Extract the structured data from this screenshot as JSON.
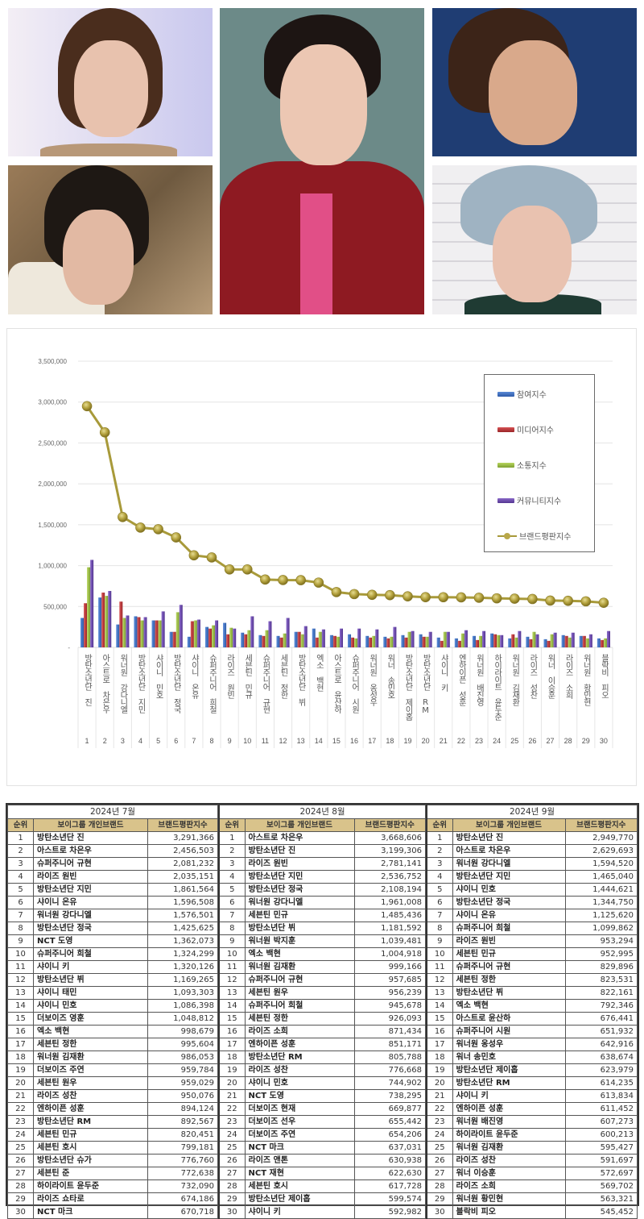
{
  "photos": [
    {
      "id": "photo-top-left",
      "description": "portrait photo"
    },
    {
      "id": "photo-bottom-left",
      "description": "portrait photo"
    },
    {
      "id": "photo-center",
      "description": "portrait photo"
    },
    {
      "id": "photo-top-right",
      "description": "portrait photo"
    },
    {
      "id": "photo-bottom-right",
      "description": "portrait photo"
    }
  ],
  "legend": {
    "items": [
      {
        "label": "참여지수",
        "color": "#3a6fc4"
      },
      {
        "label": "미디어지수",
        "color": "#c0393b"
      },
      {
        "label": "소통지수",
        "color": "#93b846"
      },
      {
        "label": "커뮤니티지수",
        "color": "#6a47a8"
      },
      {
        "label": "브랜드평판지수",
        "color": "#b5a540"
      }
    ]
  },
  "chart_data": {
    "type": "bar",
    "title": "",
    "xlabel": "",
    "ylabel": "",
    "ylim": [
      0,
      3500000
    ],
    "yticks": [
      "-",
      "500,000",
      "1,000,000",
      "1,500,000",
      "2,000,000",
      "2,500,000",
      "3,000,000",
      "3,500,000"
    ],
    "grid": true,
    "legend_position": "upper right",
    "categories": [
      "방탄소년단 진",
      "아스트로 차은우",
      "워너원 강다니엘",
      "방탄소년단 지민",
      "샤이니 민호",
      "방탄소년단 정국",
      "샤이니 온유",
      "슈퍼주니어 희철",
      "라이즈 원빈",
      "세븐틴 민규",
      "슈퍼주니어 규현",
      "세븐틴 정한",
      "방탄소년단 뷔",
      "엑소 백현",
      "아스트로 윤산하",
      "슈퍼주니어 시원",
      "워너원 옹성우",
      "워너 송민호",
      "방탄소년단 제이홉",
      "방탄소년단 RM",
      "샤이니 키",
      "엔하이픈 성훈",
      "워너원 배진영",
      "하이라이트 윤두준",
      "워너원 김재환",
      "라이즈 성찬",
      "워너 이승훈",
      "라이즈 소희",
      "워너원 황민현",
      "블락비 피오"
    ],
    "x_numbers": [
      "1",
      "2",
      "3",
      "4",
      "5",
      "6",
      "7",
      "8",
      "9",
      "10",
      "11",
      "12",
      "13",
      "14",
      "15",
      "16",
      "17",
      "18",
      "19",
      "20",
      "21",
      "22",
      "23",
      "24",
      "25",
      "26",
      "27",
      "28",
      "29",
      "30"
    ],
    "series": [
      {
        "name": "참여지수",
        "type": "bar",
        "values": [
          360000,
          610000,
          280000,
          380000,
          330000,
          190000,
          130000,
          250000,
          300000,
          180000,
          150000,
          140000,
          190000,
          230000,
          150000,
          160000,
          140000,
          130000,
          150000,
          160000,
          120000,
          110000,
          140000,
          170000,
          110000,
          130000,
          100000,
          150000,
          140000,
          110000
        ]
      },
      {
        "name": "미디어지수",
        "type": "bar",
        "values": [
          540000,
          670000,
          560000,
          370000,
          330000,
          190000,
          320000,
          230000,
          160000,
          160000,
          140000,
          120000,
          190000,
          120000,
          140000,
          120000,
          120000,
          110000,
          120000,
          130000,
          80000,
          80000,
          90000,
          160000,
          160000,
          100000,
          80000,
          140000,
          140000,
          90000
        ]
      },
      {
        "name": "소통지수",
        "type": "bar",
        "values": [
          980000,
          630000,
          360000,
          330000,
          330000,
          430000,
          330000,
          270000,
          240000,
          210000,
          210000,
          170000,
          160000,
          190000,
          130000,
          110000,
          140000,
          130000,
          190000,
          130000,
          190000,
          170000,
          140000,
          150000,
          120000,
          190000,
          160000,
          120000,
          110000,
          110000
        ]
      },
      {
        "name": "커뮤니티지수",
        "type": "bar",
        "values": [
          1070000,
          690000,
          390000,
          370000,
          440000,
          520000,
          340000,
          330000,
          230000,
          380000,
          320000,
          360000,
          260000,
          220000,
          230000,
          230000,
          220000,
          250000,
          200000,
          190000,
          190000,
          210000,
          200000,
          150000,
          200000,
          160000,
          180000,
          180000,
          160000,
          200000
        ]
      },
      {
        "name": "브랜드평판지수",
        "type": "line",
        "values": [
          2949770,
          2629693,
          1594520,
          1465040,
          1444621,
          1344750,
          1125620,
          1099862,
          953294,
          952995,
          829896,
          823531,
          822161,
          792346,
          676441,
          651932,
          642916,
          638674,
          623979,
          614235,
          613834,
          611452,
          607273,
          600213,
          595427,
          591697,
          572697,
          569702,
          563321,
          545452
        ]
      }
    ]
  },
  "tables": [
    {
      "month": "2024년 7월",
      "headers": [
        "순위",
        "보이그룹 개인브랜드",
        "브랜드평판지수"
      ],
      "rows": [
        [
          "1",
          "방탄소년단 진",
          "3,291,366"
        ],
        [
          "2",
          "아스트로 차은우",
          "2,456,503"
        ],
        [
          "3",
          "슈퍼주니어 규현",
          "2,081,232"
        ],
        [
          "4",
          "라이즈 원빈",
          "2,035,151"
        ],
        [
          "5",
          "방탄소년단 지민",
          "1,861,564"
        ],
        [
          "6",
          "샤이니 온유",
          "1,596,508"
        ],
        [
          "7",
          "워너원 강다니엘",
          "1,576,501"
        ],
        [
          "8",
          "방탄소년단 정국",
          "1,425,625"
        ],
        [
          "9",
          "NCT 도영",
          "1,362,073"
        ],
        [
          "10",
          "슈퍼주니어 희철",
          "1,324,299"
        ],
        [
          "11",
          "샤이니 키",
          "1,320,126"
        ],
        [
          "12",
          "방탄소년단 뷔",
          "1,169,265"
        ],
        [
          "13",
          "샤이니 태민",
          "1,093,303"
        ],
        [
          "14",
          "샤이니 민호",
          "1,086,398"
        ],
        [
          "15",
          "더보이즈 영훈",
          "1,048,812"
        ],
        [
          "16",
          "엑소 백현",
          "998,679"
        ],
        [
          "17",
          "세븐틴 정한",
          "995,604"
        ],
        [
          "18",
          "워너원 김재환",
          "986,053"
        ],
        [
          "19",
          "더보이즈 주연",
          "959,784"
        ],
        [
          "20",
          "세븐틴 원우",
          "959,029"
        ],
        [
          "21",
          "라이즈 성찬",
          "950,076"
        ],
        [
          "22",
          "엔하이픈 성훈",
          "894,124"
        ],
        [
          "23",
          "방탄소년단 RM",
          "892,567"
        ],
        [
          "24",
          "세븐틴 민규",
          "820,451"
        ],
        [
          "25",
          "세븐틴 호시",
          "799,181"
        ],
        [
          "26",
          "방탄소년단 슈가",
          "776,760"
        ],
        [
          "27",
          "세븐틴 준",
          "772,638"
        ],
        [
          "28",
          "하이라이트 윤두준",
          "732,090"
        ],
        [
          "29",
          "라이즈 쇼타로",
          "674,186"
        ],
        [
          "30",
          "NCT 마크",
          "670,718"
        ]
      ]
    },
    {
      "month": "2024년 8월",
      "headers": [
        "순위",
        "보이그룹 개인브랜드",
        "브랜드평판지수"
      ],
      "rows": [
        [
          "1",
          "아스트로 차은우",
          "3,668,606"
        ],
        [
          "2",
          "방탄소년단 진",
          "3,199,306"
        ],
        [
          "3",
          "라이즈 원빈",
          "2,781,141"
        ],
        [
          "4",
          "방탄소년단 지민",
          "2,536,752"
        ],
        [
          "5",
          "방탄소년단 정국",
          "2,108,194"
        ],
        [
          "6",
          "워너원 강다니엘",
          "1,961,008"
        ],
        [
          "7",
          "세븐틴 민규",
          "1,485,436"
        ],
        [
          "8",
          "방탄소년단 뷔",
          "1,181,592"
        ],
        [
          "9",
          "워너원 박지훈",
          "1,039,481"
        ],
        [
          "10",
          "엑소 백현",
          "1,004,918"
        ],
        [
          "11",
          "워너원 김재환",
          "999,166"
        ],
        [
          "12",
          "슈퍼주니어 규현",
          "957,685"
        ],
        [
          "13",
          "세븐틴 원우",
          "956,239"
        ],
        [
          "14",
          "슈퍼주니어 희철",
          "945,678"
        ],
        [
          "15",
          "세븐틴 정한",
          "926,093"
        ],
        [
          "16",
          "라이즈 소희",
          "871,434"
        ],
        [
          "17",
          "엔하이픈 성훈",
          "851,171"
        ],
        [
          "18",
          "방탄소년단 RM",
          "805,788"
        ],
        [
          "19",
          "라이즈 성찬",
          "776,668"
        ],
        [
          "20",
          "샤이니 민호",
          "744,902"
        ],
        [
          "21",
          "NCT 도영",
          "738,295"
        ],
        [
          "22",
          "더보이즈 현재",
          "669,877"
        ],
        [
          "23",
          "더보이즈 선우",
          "655,442"
        ],
        [
          "24",
          "더보이즈 주연",
          "654,206"
        ],
        [
          "25",
          "NCT 마크",
          "637,031"
        ],
        [
          "26",
          "라이즈 앤톤",
          "630,938"
        ],
        [
          "27",
          "NCT 재현",
          "622,630"
        ],
        [
          "28",
          "세븐틴 호시",
          "617,728"
        ],
        [
          "29",
          "방탄소년단 제이홉",
          "599,574"
        ],
        [
          "30",
          "샤이니 키",
          "592,982"
        ]
      ]
    },
    {
      "month": "2024년 9월",
      "headers": [
        "순위",
        "보이그룹 개인브랜드",
        "브랜드평판지수"
      ],
      "rows": [
        [
          "1",
          "방탄소년단 진",
          "2,949,770"
        ],
        [
          "2",
          "아스트로 차은우",
          "2,629,693"
        ],
        [
          "3",
          "워너원 강다니엘",
          "1,594,520"
        ],
        [
          "4",
          "방탄소년단 지민",
          "1,465,040"
        ],
        [
          "5",
          "샤이니 민호",
          "1,444,621"
        ],
        [
          "6",
          "방탄소년단 정국",
          "1,344,750"
        ],
        [
          "7",
          "샤이니 온유",
          "1,125,620"
        ],
        [
          "8",
          "슈퍼주니어 희철",
          "1,099,862"
        ],
        [
          "9",
          "라이즈 원빈",
          "953,294"
        ],
        [
          "10",
          "세븐틴 민규",
          "952,995"
        ],
        [
          "11",
          "슈퍼주니어 규현",
          "829,896"
        ],
        [
          "12",
          "세븐틴 정한",
          "823,531"
        ],
        [
          "13",
          "방탄소년단 뷔",
          "822,161"
        ],
        [
          "14",
          "엑소 백현",
          "792,346"
        ],
        [
          "15",
          "아스트로 윤산하",
          "676,441"
        ],
        [
          "16",
          "슈퍼주니어 시원",
          "651,932"
        ],
        [
          "17",
          "워너원 옹성우",
          "642,916"
        ],
        [
          "18",
          "워너 송민호",
          "638,674"
        ],
        [
          "19",
          "방탄소년단 제이홉",
          "623,979"
        ],
        [
          "20",
          "방탄소년단 RM",
          "614,235"
        ],
        [
          "21",
          "샤이니 키",
          "613,834"
        ],
        [
          "22",
          "엔하이픈 성훈",
          "611,452"
        ],
        [
          "23",
          "워너원 배진영",
          "607,273"
        ],
        [
          "24",
          "하이라이트 윤두준",
          "600,213"
        ],
        [
          "25",
          "워너원 김재환",
          "595,427"
        ],
        [
          "26",
          "라이즈 성찬",
          "591,697"
        ],
        [
          "27",
          "워너 이승훈",
          "572,697"
        ],
        [
          "28",
          "라이즈 소희",
          "569,702"
        ],
        [
          "29",
          "워너원 황민현",
          "563,321"
        ],
        [
          "30",
          "블락비 피오",
          "545,452"
        ]
      ]
    }
  ]
}
